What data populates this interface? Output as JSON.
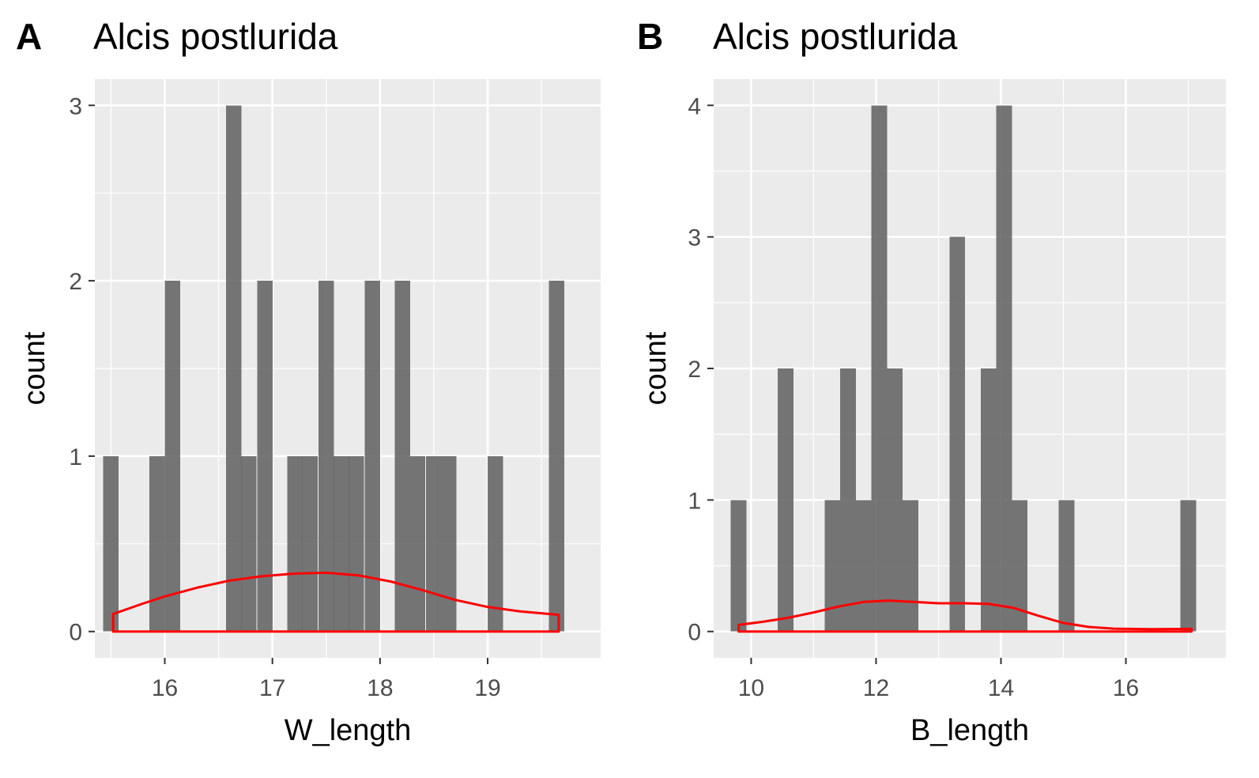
{
  "colors": {
    "panel_background": "#ebebeb",
    "grid": "#ffffff",
    "bar_fill": "#595959",
    "density_line": "#ff0000",
    "tick_label": "#4d4d4d",
    "text": "#000000"
  },
  "chart_data": [
    {
      "type": "bar",
      "panel_tag": "A",
      "title": "Alcis postlurida",
      "xlabel": "W_length",
      "ylabel": "count",
      "xlim": [
        15.35,
        20.05
      ],
      "ylim": [
        -0.15,
        3.15
      ],
      "x_ticks": [
        16,
        17,
        18,
        19
      ],
      "x_tick_labels": [
        "16",
        "17",
        "18",
        "19"
      ],
      "y_ticks": [
        0,
        1,
        2,
        3
      ],
      "y_tick_labels": [
        "0",
        "1",
        "2",
        "3"
      ],
      "bin_width": 0.1429,
      "bins": [
        {
          "x": 15.5,
          "count": 1
        },
        {
          "x": 15.64,
          "count": 0
        },
        {
          "x": 15.78,
          "count": 0
        },
        {
          "x": 15.93,
          "count": 1
        },
        {
          "x": 16.07,
          "count": 2
        },
        {
          "x": 16.21,
          "count": 0
        },
        {
          "x": 16.36,
          "count": 0
        },
        {
          "x": 16.5,
          "count": 0
        },
        {
          "x": 16.64,
          "count": 3
        },
        {
          "x": 16.78,
          "count": 1
        },
        {
          "x": 16.93,
          "count": 2
        },
        {
          "x": 17.07,
          "count": 0
        },
        {
          "x": 17.21,
          "count": 1
        },
        {
          "x": 17.35,
          "count": 1
        },
        {
          "x": 17.5,
          "count": 2
        },
        {
          "x": 17.64,
          "count": 1
        },
        {
          "x": 17.78,
          "count": 1
        },
        {
          "x": 17.93,
          "count": 2
        },
        {
          "x": 18.07,
          "count": 0
        },
        {
          "x": 18.21,
          "count": 2
        },
        {
          "x": 18.35,
          "count": 1
        },
        {
          "x": 18.5,
          "count": 1
        },
        {
          "x": 18.64,
          "count": 1
        },
        {
          "x": 18.78,
          "count": 0
        },
        {
          "x": 18.92,
          "count": 0
        },
        {
          "x": 19.07,
          "count": 1
        },
        {
          "x": 19.21,
          "count": 0
        },
        {
          "x": 19.35,
          "count": 0
        },
        {
          "x": 19.5,
          "count": 0
        },
        {
          "x": 19.64,
          "count": 2
        }
      ],
      "density": {
        "x": [
          15.52,
          15.8,
          16.0,
          16.3,
          16.6,
          16.9,
          17.2,
          17.5,
          17.8,
          18.1,
          18.4,
          18.7,
          19.0,
          19.3,
          19.66
        ],
        "y": [
          0.1,
          0.16,
          0.2,
          0.25,
          0.29,
          0.315,
          0.33,
          0.335,
          0.32,
          0.285,
          0.235,
          0.18,
          0.14,
          0.115,
          0.095
        ]
      }
    },
    {
      "type": "bar",
      "panel_tag": "B",
      "title": "Alcis postlurida",
      "xlabel": "B_length",
      "ylabel": "count",
      "xlim": [
        9.4,
        17.6
      ],
      "ylim": [
        -0.2,
        4.2
      ],
      "x_ticks": [
        10,
        12,
        14,
        16
      ],
      "x_tick_labels": [
        "10",
        "12",
        "14",
        "16"
      ],
      "y_ticks": [
        0,
        1,
        2,
        3,
        4
      ],
      "y_tick_labels": [
        "0",
        "1",
        "2",
        "3",
        "4"
      ],
      "bin_width": 0.25,
      "bins": [
        {
          "x": 9.8,
          "count": 1
        },
        {
          "x": 10.05,
          "count": 0
        },
        {
          "x": 10.3,
          "count": 0
        },
        {
          "x": 10.55,
          "count": 2
        },
        {
          "x": 10.8,
          "count": 0
        },
        {
          "x": 11.05,
          "count": 0
        },
        {
          "x": 11.3,
          "count": 1
        },
        {
          "x": 11.55,
          "count": 2
        },
        {
          "x": 11.8,
          "count": 1
        },
        {
          "x": 12.05,
          "count": 4
        },
        {
          "x": 12.3,
          "count": 2
        },
        {
          "x": 12.55,
          "count": 1
        },
        {
          "x": 12.8,
          "count": 0
        },
        {
          "x": 13.05,
          "count": 0
        },
        {
          "x": 13.3,
          "count": 3
        },
        {
          "x": 13.55,
          "count": 0
        },
        {
          "x": 13.8,
          "count": 2
        },
        {
          "x": 14.05,
          "count": 4
        },
        {
          "x": 14.3,
          "count": 1
        },
        {
          "x": 14.55,
          "count": 0
        },
        {
          "x": 14.8,
          "count": 0
        },
        {
          "x": 15.05,
          "count": 1
        },
        {
          "x": 15.3,
          "count": 0
        },
        {
          "x": 15.55,
          "count": 0
        },
        {
          "x": 15.8,
          "count": 0
        },
        {
          "x": 16.05,
          "count": 0
        },
        {
          "x": 16.3,
          "count": 0
        },
        {
          "x": 16.55,
          "count": 0
        },
        {
          "x": 16.8,
          "count": 0
        },
        {
          "x": 17.0,
          "count": 1
        }
      ],
      "density": {
        "x": [
          9.8,
          10.2,
          10.6,
          11.0,
          11.4,
          11.8,
          12.2,
          12.6,
          13.0,
          13.4,
          13.8,
          14.2,
          14.6,
          15.0,
          15.4,
          15.8,
          16.4,
          17.05
        ],
        "y": [
          0.05,
          0.075,
          0.105,
          0.145,
          0.19,
          0.225,
          0.235,
          0.225,
          0.215,
          0.215,
          0.21,
          0.18,
          0.12,
          0.065,
          0.035,
          0.022,
          0.018,
          0.02
        ]
      }
    }
  ]
}
